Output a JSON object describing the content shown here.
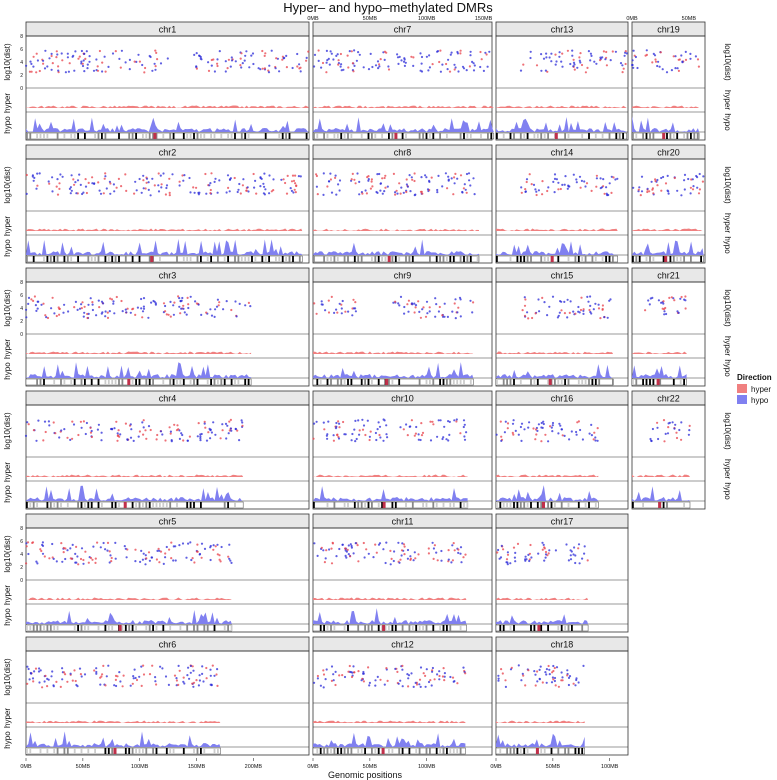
{
  "chart_data": {
    "type": "scatter",
    "title": "Hyper– and hypo–methylated DMRs",
    "xlabel": "Genomic positions",
    "legend": {
      "title": "Direction",
      "placement": "right",
      "entries": [
        {
          "name": "hyper",
          "color": "#f08080"
        },
        {
          "name": "hypo",
          "color": "#8080f0"
        }
      ]
    },
    "colors": {
      "hyper_point": "#e8404a",
      "hypo_point": "#2a2ad8",
      "hyper_area": "#f08080",
      "hypo_area": "#8080f0",
      "strip_bg": "#e8e8e8"
    },
    "axis_labels": {
      "top_track": "log10(dist)",
      "mid_track": "hyper",
      "bottom_track": "hypo"
    },
    "x_ticks_mb": [
      0,
      50,
      100,
      150,
      200
    ],
    "x_tick_labels": [
      "0MB",
      "50MB",
      "100MB",
      "150MB",
      "200MB"
    ],
    "y_ticks_log10dist": [
      0,
      2,
      4,
      6,
      8
    ],
    "y_tick_labels": [
      "0",
      "2",
      "4",
      "6",
      "8"
    ],
    "y_range": [
      0,
      8
    ],
    "density_tick_labels": [
      "0.02",
      "0.015",
      "0.01",
      "0.005",
      "0"
    ],
    "panels": [
      {
        "chr": "chr1",
        "length_mb": 249,
        "dmr_regions_mb": [
          [
            0,
            125
          ],
          [
            145,
            249
          ]
        ]
      },
      {
        "chr": "chr2",
        "length_mb": 243,
        "dmr_regions_mb": [
          [
            0,
            90
          ],
          [
            95,
            243
          ]
        ]
      },
      {
        "chr": "chr3",
        "length_mb": 198,
        "dmr_regions_mb": [
          [
            0,
            198
          ]
        ]
      },
      {
        "chr": "chr4",
        "length_mb": 191,
        "dmr_regions_mb": [
          [
            0,
            191
          ]
        ]
      },
      {
        "chr": "chr5",
        "length_mb": 181,
        "dmr_regions_mb": [
          [
            0,
            181
          ]
        ]
      },
      {
        "chr": "chr6",
        "length_mb": 171,
        "dmr_regions_mb": [
          [
            0,
            171
          ]
        ]
      },
      {
        "chr": "chr7",
        "length_mb": 159,
        "dmr_regions_mb": [
          [
            0,
            159
          ]
        ]
      },
      {
        "chr": "chr8",
        "length_mb": 146,
        "dmr_regions_mb": [
          [
            0,
            146
          ]
        ]
      },
      {
        "chr": "chr9",
        "length_mb": 141,
        "dmr_regions_mb": [
          [
            0,
            40
          ],
          [
            70,
            141
          ]
        ]
      },
      {
        "chr": "chr10",
        "length_mb": 136,
        "dmr_regions_mb": [
          [
            0,
            136
          ]
        ]
      },
      {
        "chr": "chr11",
        "length_mb": 135,
        "dmr_regions_mb": [
          [
            0,
            135
          ]
        ]
      },
      {
        "chr": "chr12",
        "length_mb": 134,
        "dmr_regions_mb": [
          [
            0,
            134
          ]
        ]
      },
      {
        "chr": "chr13",
        "length_mb": 115,
        "dmr_regions_mb": [
          [
            20,
            115
          ]
        ]
      },
      {
        "chr": "chr14",
        "length_mb": 107,
        "dmr_regions_mb": [
          [
            20,
            107
          ]
        ]
      },
      {
        "chr": "chr15",
        "length_mb": 103,
        "dmr_regions_mb": [
          [
            22,
            103
          ]
        ]
      },
      {
        "chr": "chr16",
        "length_mb": 90,
        "dmr_regions_mb": [
          [
            0,
            90
          ]
        ]
      },
      {
        "chr": "chr17",
        "length_mb": 81,
        "dmr_regions_mb": [
          [
            0,
            81
          ]
        ]
      },
      {
        "chr": "chr18",
        "length_mb": 78,
        "dmr_regions_mb": [
          [
            0,
            78
          ]
        ]
      },
      {
        "chr": "chr19",
        "length_mb": 59,
        "dmr_regions_mb": [
          [
            0,
            59
          ]
        ]
      },
      {
        "chr": "chr20",
        "length_mb": 63,
        "dmr_regions_mb": [
          [
            0,
            63
          ]
        ]
      },
      {
        "chr": "chr21",
        "length_mb": 48,
        "dmr_regions_mb": [
          [
            10,
            48
          ]
        ]
      },
      {
        "chr": "chr22",
        "length_mb": 51,
        "dmr_regions_mb": [
          [
            16,
            51
          ]
        ]
      }
    ]
  }
}
